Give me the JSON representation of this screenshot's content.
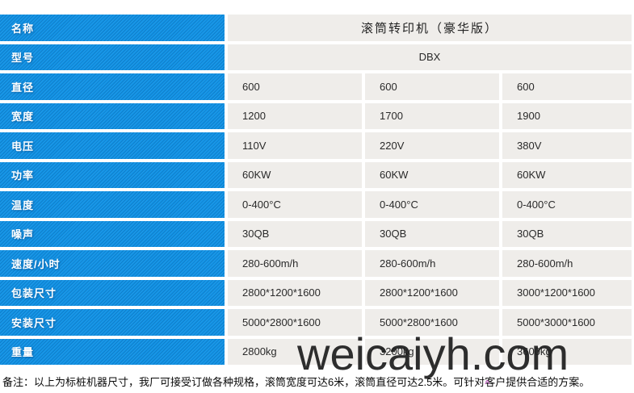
{
  "table": {
    "rows": [
      {
        "label": "名称",
        "merged": true,
        "value": "滚筒转印机（豪华版）"
      },
      {
        "label": "型号",
        "merged": true,
        "value": "DBX"
      },
      {
        "label": "直径",
        "values": [
          "600",
          "600",
          "600"
        ]
      },
      {
        "label": "宽度",
        "values": [
          "1200",
          "1700",
          "1900"
        ]
      },
      {
        "label": "电压",
        "values": [
          "110V",
          "220V",
          "380V"
        ]
      },
      {
        "label": "功率",
        "values": [
          "60KW",
          "60KW",
          "60KW"
        ]
      },
      {
        "label": "温度",
        "values": [
          "0-400°C",
          "0-400°C",
          "0-400°C"
        ]
      },
      {
        "label": "噪声",
        "values": [
          "30QB",
          "30QB",
          "30QB"
        ]
      },
      {
        "label": "速度/小时",
        "values": [
          "280-600m/h",
          "280-600m/h",
          "280-600m/h"
        ]
      },
      {
        "label": "包装尺寸",
        "values": [
          "2800*1200*1600",
          "2800*1200*1600",
          "3000*1200*1600"
        ]
      },
      {
        "label": "安装尺寸",
        "values": [
          "5000*2800*1600",
          "5000*2800*1600",
          "5000*3000*1600"
        ]
      },
      {
        "label": "重量",
        "values": [
          "2800kg",
          "3200kg",
          "3600kg"
        ]
      }
    ]
  },
  "note": "备注：以上为标桩机器尺寸，我厂可接受订做各种规格，滚筒宽度可达6米，滚筒直径可达2.5米。可针对客户提供合适的方案。",
  "watermark": "weicaiyh.com",
  "caret": "^",
  "colors": {
    "label_bg": "#1193e6",
    "cell_bg": "#efedea",
    "text": "#2a2a2a",
    "watermark": "#1f1f1f"
  }
}
